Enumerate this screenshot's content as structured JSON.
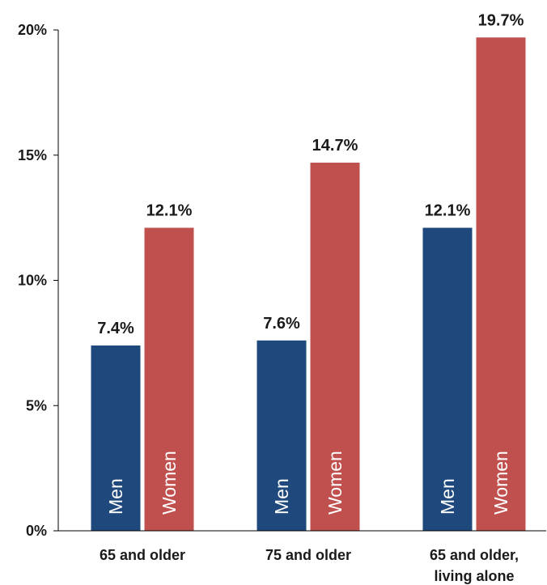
{
  "chart_data": {
    "type": "bar",
    "title": "",
    "xlabel": "",
    "ylabel": "",
    "ylim": [
      0,
      20
    ],
    "yticks": [
      0,
      5,
      10,
      15,
      20
    ],
    "ytick_labels": [
      "0%",
      "5%",
      "10%",
      "15%",
      "20%"
    ],
    "grid": false,
    "legend": "none",
    "categories": [
      {
        "lines": [
          "65 and older"
        ]
      },
      {
        "lines": [
          "75 and older"
        ]
      },
      {
        "lines": [
          "65 and older,",
          "living alone"
        ]
      }
    ],
    "series": [
      {
        "name": "Men",
        "color": "#1f497d",
        "values": [
          7.4,
          7.6,
          12.1
        ],
        "labels": [
          "7.4%",
          "7.6%",
          "12.1%"
        ]
      },
      {
        "name": "Women",
        "color": "#c0504d",
        "values": [
          12.1,
          14.7,
          19.7
        ],
        "labels": [
          "12.1%",
          "14.7%",
          "19.7%"
        ]
      }
    ]
  }
}
